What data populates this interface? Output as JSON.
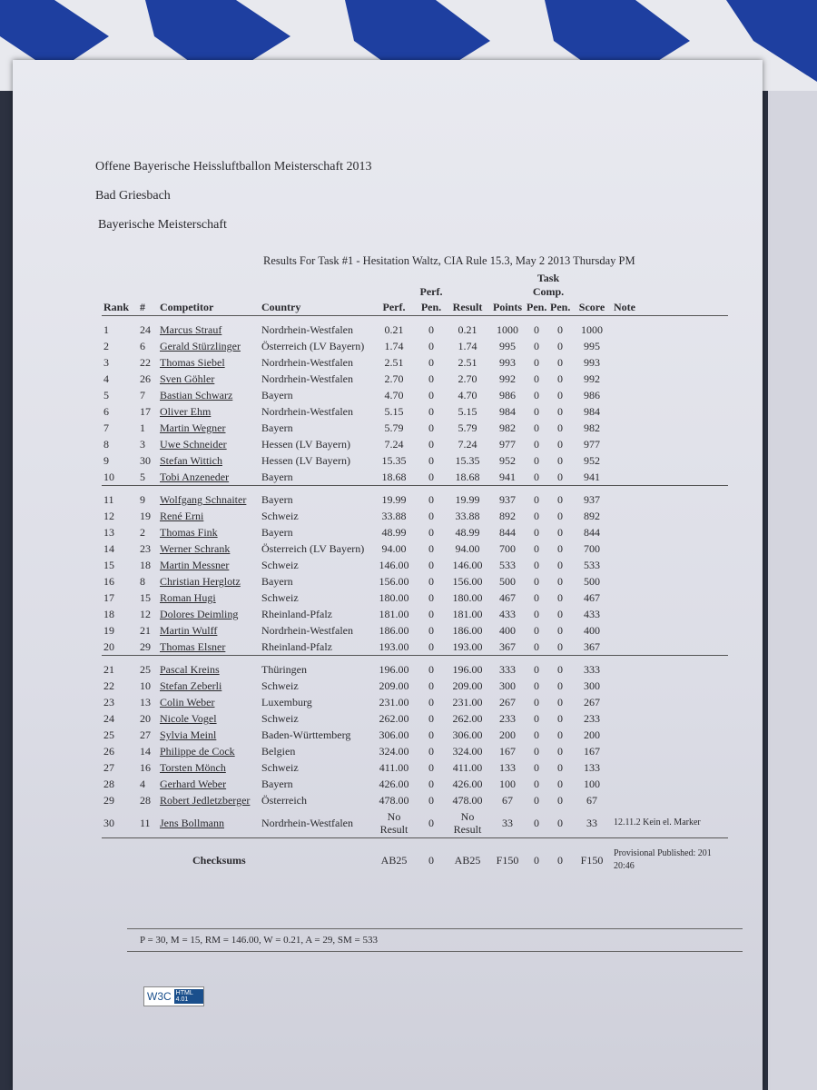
{
  "header": {
    "title": "Offene Bayerische Heissluftballon Meisterschaft 2013",
    "location": "Bad Griesbach",
    "subtitle": "Bayerische Meisterschaft"
  },
  "table": {
    "caption": "Results For Task #1 - Hesitation Waltz, CIA Rule 15.3, May 2 2013 Thursday PM",
    "group_headers": {
      "perf": "Perf.",
      "task_comp": "Task Comp."
    },
    "columns": [
      "Rank",
      "#",
      "Competitor",
      "Country",
      "Perf.",
      "Pen.",
      "Result",
      "Points",
      "Pen.",
      "Pen.",
      "Score",
      "Note"
    ],
    "groups": [
      [
        {
          "rank": "1",
          "num": "24",
          "competitor": "Marcus Strauf",
          "country": "Nordrhein-Westfalen",
          "perf": "0.21",
          "perf_pen": "0",
          "result": "0.21",
          "points": "1000",
          "task_pen": "0",
          "pen": "0",
          "score": "1000"
        },
        {
          "rank": "2",
          "num": "6",
          "competitor": "Gerald Stürzlinger",
          "country": "Österreich (LV Bayern)",
          "perf": "1.74",
          "perf_pen": "0",
          "result": "1.74",
          "points": "995",
          "task_pen": "0",
          "pen": "0",
          "score": "995"
        },
        {
          "rank": "3",
          "num": "22",
          "competitor": "Thomas Siebel",
          "country": "Nordrhein-Westfalen",
          "perf": "2.51",
          "perf_pen": "0",
          "result": "2.51",
          "points": "993",
          "task_pen": "0",
          "pen": "0",
          "score": "993"
        },
        {
          "rank": "4",
          "num": "26",
          "competitor": "Sven Göhler",
          "country": "Nordrhein-Westfalen",
          "perf": "2.70",
          "perf_pen": "0",
          "result": "2.70",
          "points": "992",
          "task_pen": "0",
          "pen": "0",
          "score": "992"
        },
        {
          "rank": "5",
          "num": "7",
          "competitor": "Bastian Schwarz",
          "country": "Bayern",
          "perf": "4.70",
          "perf_pen": "0",
          "result": "4.70",
          "points": "986",
          "task_pen": "0",
          "pen": "0",
          "score": "986"
        },
        {
          "rank": "6",
          "num": "17",
          "competitor": "Oliver Ehm",
          "country": "Nordrhein-Westfalen",
          "perf": "5.15",
          "perf_pen": "0",
          "result": "5.15",
          "points": "984",
          "task_pen": "0",
          "pen": "0",
          "score": "984"
        },
        {
          "rank": "7",
          "num": "1",
          "competitor": "Martin Wegner",
          "country": "Bayern",
          "perf": "5.79",
          "perf_pen": "0",
          "result": "5.79",
          "points": "982",
          "task_pen": "0",
          "pen": "0",
          "score": "982"
        },
        {
          "rank": "8",
          "num": "3",
          "competitor": "Uwe Schneider",
          "country": "Hessen (LV Bayern)",
          "perf": "7.24",
          "perf_pen": "0",
          "result": "7.24",
          "points": "977",
          "task_pen": "0",
          "pen": "0",
          "score": "977"
        },
        {
          "rank": "9",
          "num": "30",
          "competitor": "Stefan Wittich",
          "country": "Hessen (LV Bayern)",
          "perf": "15.35",
          "perf_pen": "0",
          "result": "15.35",
          "points": "952",
          "task_pen": "0",
          "pen": "0",
          "score": "952"
        },
        {
          "rank": "10",
          "num": "5",
          "competitor": "Tobi Anzeneder",
          "country": "Bayern",
          "perf": "18.68",
          "perf_pen": "0",
          "result": "18.68",
          "points": "941",
          "task_pen": "0",
          "pen": "0",
          "score": "941"
        }
      ],
      [
        {
          "rank": "11",
          "num": "9",
          "competitor": "Wolfgang Schnaiter",
          "country": "Bayern",
          "perf": "19.99",
          "perf_pen": "0",
          "result": "19.99",
          "points": "937",
          "task_pen": "0",
          "pen": "0",
          "score": "937"
        },
        {
          "rank": "12",
          "num": "19",
          "competitor": "René Erni",
          "country": "Schweiz",
          "perf": "33.88",
          "perf_pen": "0",
          "result": "33.88",
          "points": "892",
          "task_pen": "0",
          "pen": "0",
          "score": "892"
        },
        {
          "rank": "13",
          "num": "2",
          "competitor": "Thomas Fink",
          "country": "Bayern",
          "perf": "48.99",
          "perf_pen": "0",
          "result": "48.99",
          "points": "844",
          "task_pen": "0",
          "pen": "0",
          "score": "844"
        },
        {
          "rank": "14",
          "num": "23",
          "competitor": "Werner Schrank",
          "country": "Österreich (LV Bayern)",
          "perf": "94.00",
          "perf_pen": "0",
          "result": "94.00",
          "points": "700",
          "task_pen": "0",
          "pen": "0",
          "score": "700"
        },
        {
          "rank": "15",
          "num": "18",
          "competitor": "Martin Messner",
          "country": "Schweiz",
          "perf": "146.00",
          "perf_pen": "0",
          "result": "146.00",
          "points": "533",
          "task_pen": "0",
          "pen": "0",
          "score": "533"
        },
        {
          "rank": "16",
          "num": "8",
          "competitor": "Christian Herglotz",
          "country": "Bayern",
          "perf": "156.00",
          "perf_pen": "0",
          "result": "156.00",
          "points": "500",
          "task_pen": "0",
          "pen": "0",
          "score": "500"
        },
        {
          "rank": "17",
          "num": "15",
          "competitor": "Roman Hugi",
          "country": "Schweiz",
          "perf": "180.00",
          "perf_pen": "0",
          "result": "180.00",
          "points": "467",
          "task_pen": "0",
          "pen": "0",
          "score": "467"
        },
        {
          "rank": "18",
          "num": "12",
          "competitor": "Dolores Deimling",
          "country": "Rheinland-Pfalz",
          "perf": "181.00",
          "perf_pen": "0",
          "result": "181.00",
          "points": "433",
          "task_pen": "0",
          "pen": "0",
          "score": "433"
        },
        {
          "rank": "19",
          "num": "21",
          "competitor": "Martin Wulff",
          "country": "Nordrhein-Westfalen",
          "perf": "186.00",
          "perf_pen": "0",
          "result": "186.00",
          "points": "400",
          "task_pen": "0",
          "pen": "0",
          "score": "400"
        },
        {
          "rank": "20",
          "num": "29",
          "competitor": "Thomas Elsner",
          "country": "Rheinland-Pfalz",
          "perf": "193.00",
          "perf_pen": "0",
          "result": "193.00",
          "points": "367",
          "task_pen": "0",
          "pen": "0",
          "score": "367"
        }
      ],
      [
        {
          "rank": "21",
          "num": "25",
          "competitor": "Pascal Kreins",
          "country": "Thüringen",
          "perf": "196.00",
          "perf_pen": "0",
          "result": "196.00",
          "points": "333",
          "task_pen": "0",
          "pen": "0",
          "score": "333"
        },
        {
          "rank": "22",
          "num": "10",
          "competitor": "Stefan Zeberli",
          "country": "Schweiz",
          "perf": "209.00",
          "perf_pen": "0",
          "result": "209.00",
          "points": "300",
          "task_pen": "0",
          "pen": "0",
          "score": "300"
        },
        {
          "rank": "23",
          "num": "13",
          "competitor": "Colin Weber",
          "country": "Luxemburg",
          "perf": "231.00",
          "perf_pen": "0",
          "result": "231.00",
          "points": "267",
          "task_pen": "0",
          "pen": "0",
          "score": "267"
        },
        {
          "rank": "24",
          "num": "20",
          "competitor": "Nicole Vogel",
          "country": "Schweiz",
          "perf": "262.00",
          "perf_pen": "0",
          "result": "262.00",
          "points": "233",
          "task_pen": "0",
          "pen": "0",
          "score": "233"
        },
        {
          "rank": "25",
          "num": "27",
          "competitor": "Sylvia Meinl",
          "country": "Baden-Württemberg",
          "perf": "306.00",
          "perf_pen": "0",
          "result": "306.00",
          "points": "200",
          "task_pen": "0",
          "pen": "0",
          "score": "200"
        },
        {
          "rank": "26",
          "num": "14",
          "competitor": "Philippe de Cock",
          "country": "Belgien",
          "perf": "324.00",
          "perf_pen": "0",
          "result": "324.00",
          "points": "167",
          "task_pen": "0",
          "pen": "0",
          "score": "167"
        },
        {
          "rank": "27",
          "num": "16",
          "competitor": "Torsten Mönch",
          "country": "Schweiz",
          "perf": "411.00",
          "perf_pen": "0",
          "result": "411.00",
          "points": "133",
          "task_pen": "0",
          "pen": "0",
          "score": "133"
        },
        {
          "rank": "28",
          "num": "4",
          "competitor": "Gerhard Weber",
          "country": "Bayern",
          "perf": "426.00",
          "perf_pen": "0",
          "result": "426.00",
          "points": "100",
          "task_pen": "0",
          "pen": "0",
          "score": "100"
        },
        {
          "rank": "29",
          "num": "28",
          "competitor": "Robert Jedletzberger",
          "country": "Österreich",
          "perf": "478.00",
          "perf_pen": "0",
          "result": "478.00",
          "points": "67",
          "task_pen": "0",
          "pen": "0",
          "score": "67"
        },
        {
          "rank": "30",
          "num": "11",
          "competitor": "Jens Bollmann",
          "country": "Nordrhein-Westfalen",
          "perf": "No Result",
          "perf_pen": "0",
          "result": "No Result",
          "points": "33",
          "task_pen": "0",
          "pen": "0",
          "score": "33",
          "note": "12.11.2 Kein el. Marker"
        }
      ]
    ],
    "checksums": {
      "label": "Checksums",
      "perf": "AB25",
      "perf_pen": "0",
      "result": "AB25",
      "points": "F150",
      "task_pen": "0",
      "pen": "0",
      "score": "F150",
      "note": "Provisional Published: 201 20:46"
    }
  },
  "footer": {
    "summary": "P = 30, M = 15, RM = 146.00, W = 0.21, A = 29, SM = 533",
    "badge": "W3C",
    "badge_small": "HTML 4.01"
  }
}
